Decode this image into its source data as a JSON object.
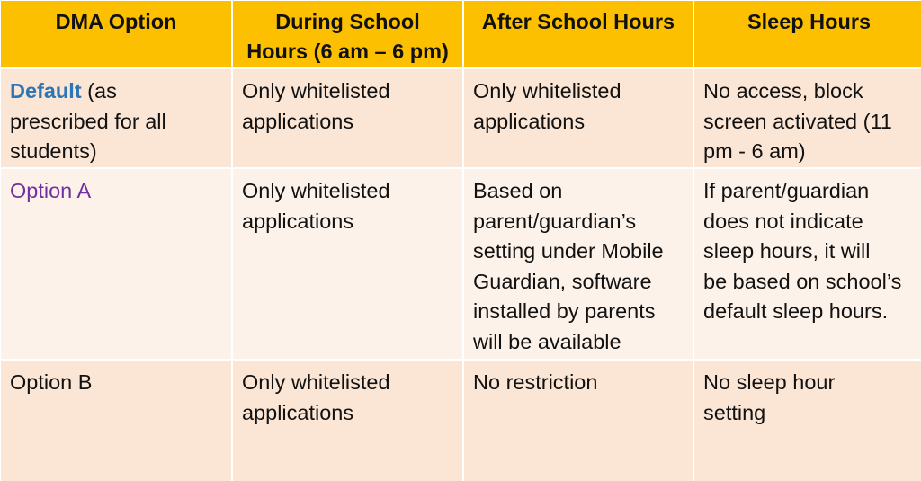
{
  "headers": [
    "DMA Option",
    "During  School\nHours (6 am – 6 pm)",
    "After School Hours",
    "Sleep Hours"
  ],
  "rows": [
    {
      "option_label": "Default",
      "option_note": " (as\nprescribed for all\nstudents)",
      "during_school": "Only whitelisted\napplications",
      "after_school": "Only whitelisted\napplications",
      "sleep": "No access, block\nscreen activated (11\npm -  6 am)"
    },
    {
      "option_label": "Option A",
      "during_school": "Only whitelisted\napplications",
      "after_school": "Based on\nparent/guardian’s\nsetting under Mobile\nGuardian, software\ninstalled by parents\nwill be available",
      "sleep": "If parent/guardian\ndoes not indicate\nsleep hours, it will\nbe based on school’s\ndefault sleep hours."
    },
    {
      "option_label": "Option B",
      "during_school": "Only whitelisted\napplications",
      "after_school": "No restriction",
      "sleep": "No sleep hour\nsetting"
    }
  ],
  "colors": {
    "header_bg": "#fcc000",
    "row_dark_bg": "#fbe5d4",
    "row_light_bg": "#fdf2ea",
    "default_label": "#2e75b6",
    "option_a_label": "#7030a0"
  }
}
